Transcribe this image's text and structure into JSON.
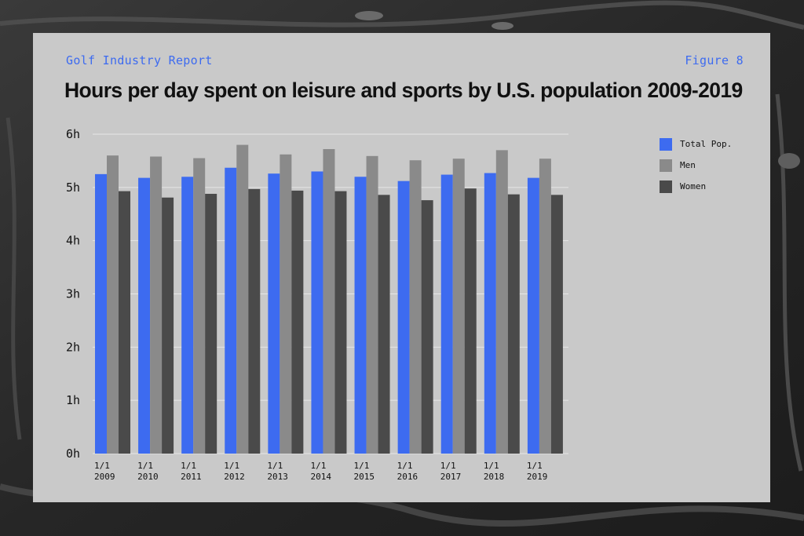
{
  "header": {
    "report_label": "Golf Industry Report",
    "figure_label": "Figure 8"
  },
  "colors": {
    "accent": "#3d6bf0",
    "card": "#c9c9c9"
  },
  "chart_data": {
    "type": "bar",
    "title": "Hours per day spent on leisure and sports by U.S. population 2009-2019",
    "xlabel": "",
    "ylabel": "",
    "ylim": [
      0,
      6
    ],
    "yticks": [
      "0h",
      "1h",
      "2h",
      "3h",
      "4h",
      "5h",
      "6h"
    ],
    "categories": [
      [
        "1/1",
        "2009"
      ],
      [
        "1/1",
        "2010"
      ],
      [
        "1/1",
        "2011"
      ],
      [
        "1/1",
        "2012"
      ],
      [
        "1/1",
        "2013"
      ],
      [
        "1/1",
        "2014"
      ],
      [
        "1/1",
        "2015"
      ],
      [
        "1/1",
        "2016"
      ],
      [
        "1/1",
        "2017"
      ],
      [
        "1/1",
        "2018"
      ],
      [
        "1/1",
        "2019"
      ]
    ],
    "grid": true,
    "legend_position": "right",
    "series": [
      {
        "name": "Total Pop.",
        "color": "#3d6bf0",
        "values": [
          5.25,
          5.18,
          5.2,
          5.37,
          5.26,
          5.3,
          5.2,
          5.12,
          5.24,
          5.27,
          5.18
        ]
      },
      {
        "name": "Men",
        "color": "#8a8a8a",
        "values": [
          5.6,
          5.58,
          5.55,
          5.8,
          5.62,
          5.72,
          5.59,
          5.51,
          5.54,
          5.7,
          5.54
        ]
      },
      {
        "name": "Women",
        "color": "#4a4a4a",
        "values": [
          4.93,
          4.81,
          4.88,
          4.97,
          4.94,
          4.93,
          4.86,
          4.76,
          4.98,
          4.87,
          4.86
        ]
      }
    ]
  }
}
